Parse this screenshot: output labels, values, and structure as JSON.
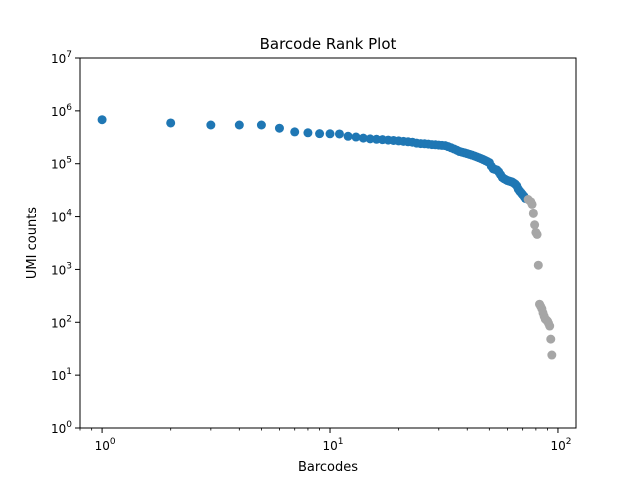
{
  "chart_data": {
    "type": "scatter",
    "title": "Barcode Rank Plot",
    "xlabel": "Barcodes",
    "ylabel": "UMI counts",
    "xscale": "log",
    "yscale": "log",
    "xlim": [
      0.8,
      120
    ],
    "ylim": [
      1,
      10000000
    ],
    "x_ticks": [
      {
        "value": 1,
        "base": "10",
        "exp": "0"
      },
      {
        "value": 10,
        "base": "10",
        "exp": "1"
      },
      {
        "value": 100,
        "base": "10",
        "exp": "2"
      }
    ],
    "y_ticks": [
      {
        "value": 1,
        "base": "10",
        "exp": "0"
      },
      {
        "value": 10,
        "base": "10",
        "exp": "1"
      },
      {
        "value": 100,
        "base": "10",
        "exp": "2"
      },
      {
        "value": 1000,
        "base": "10",
        "exp": "3"
      },
      {
        "value": 10000,
        "base": "10",
        "exp": "4"
      },
      {
        "value": 100000,
        "base": "10",
        "exp": "5"
      },
      {
        "value": 1000000,
        "base": "10",
        "exp": "6"
      },
      {
        "value": 10000000,
        "base": "10",
        "exp": "7"
      }
    ],
    "grid": false,
    "legend": false,
    "colors": {
      "cells": "#1f77b4",
      "background": "#a6a6a6"
    },
    "series": [
      {
        "color": "#1f77b4",
        "points": [
          [
            1,
            680000
          ],
          [
            2,
            590000
          ],
          [
            3,
            540000
          ],
          [
            4,
            540000
          ],
          [
            5,
            540000
          ],
          [
            6,
            470000
          ],
          [
            7,
            400000
          ],
          [
            8,
            385000
          ],
          [
            9,
            370000
          ],
          [
            10,
            368000
          ],
          [
            11,
            365000
          ],
          [
            12,
            330000
          ],
          [
            13,
            320000
          ],
          [
            14,
            305000
          ],
          [
            15,
            295000
          ],
          [
            16,
            290000
          ],
          [
            17,
            285000
          ],
          [
            18,
            280000
          ],
          [
            19,
            275000
          ],
          [
            20,
            270000
          ],
          [
            21,
            265000
          ],
          [
            22,
            260000
          ],
          [
            23,
            255000
          ],
          [
            24,
            245000
          ],
          [
            25,
            240000
          ],
          [
            26,
            238000
          ],
          [
            27,
            235000
          ],
          [
            28,
            230000
          ],
          [
            29,
            228000
          ],
          [
            30,
            225000
          ],
          [
            31,
            222000
          ],
          [
            32,
            220000
          ],
          [
            33,
            210000
          ],
          [
            34,
            200000
          ],
          [
            35,
            190000
          ],
          [
            36,
            180000
          ],
          [
            37,
            170000
          ],
          [
            38,
            165000
          ],
          [
            39,
            160000
          ],
          [
            40,
            155000
          ],
          [
            41,
            150000
          ],
          [
            42,
            145000
          ],
          [
            43,
            140000
          ],
          [
            44,
            135000
          ],
          [
            45,
            130000
          ],
          [
            46,
            125000
          ],
          [
            47,
            120000
          ],
          [
            48,
            115000
          ],
          [
            49,
            110000
          ],
          [
            50,
            105000
          ],
          [
            51,
            90000
          ],
          [
            52,
            80000
          ],
          [
            53,
            78000
          ],
          [
            54,
            76000
          ],
          [
            55,
            70000
          ],
          [
            56,
            62000
          ],
          [
            57,
            55000
          ],
          [
            58,
            52000
          ],
          [
            59,
            50000
          ],
          [
            60,
            48000
          ],
          [
            61,
            47000
          ],
          [
            62,
            46000
          ],
          [
            63,
            45000
          ],
          [
            64,
            43000
          ],
          [
            65,
            41000
          ],
          [
            66,
            38000
          ],
          [
            67,
            33000
          ],
          [
            68,
            30000
          ],
          [
            69,
            28000
          ],
          [
            70,
            26000
          ],
          [
            71,
            24000
          ],
          [
            72,
            22000
          ]
        ]
      },
      {
        "color": "#a6a6a6",
        "points": [
          [
            74,
            21000
          ],
          [
            76,
            19000
          ],
          [
            77,
            17000
          ],
          [
            78,
            11500
          ],
          [
            79,
            7000
          ],
          [
            80,
            5000
          ],
          [
            81,
            4600
          ],
          [
            82,
            1200
          ],
          [
            83,
            220
          ],
          [
            84,
            200
          ],
          [
            85,
            180
          ],
          [
            86,
            150
          ],
          [
            87,
            130
          ],
          [
            88,
            115
          ],
          [
            89,
            110
          ],
          [
            90,
            105
          ],
          [
            91,
            95
          ],
          [
            92,
            85
          ],
          [
            93,
            48
          ],
          [
            94,
            24
          ]
        ]
      }
    ]
  }
}
